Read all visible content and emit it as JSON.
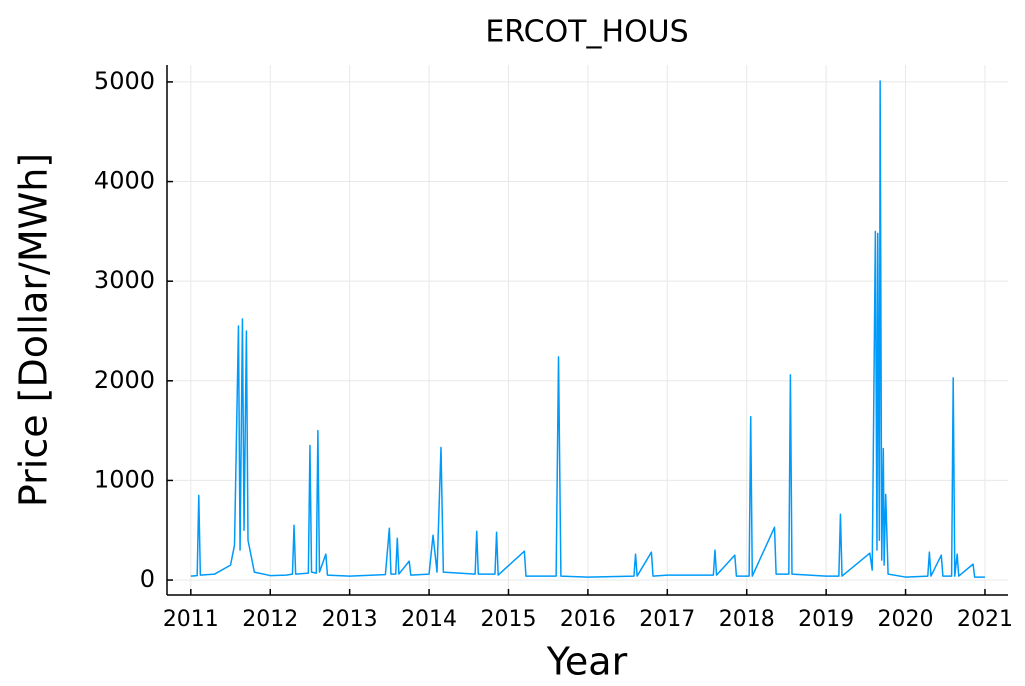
{
  "chart_data": {
    "type": "line",
    "title": "ERCOT_HOUS",
    "xlabel": "Year",
    "ylabel": "Price [Dollar/MWh]",
    "color": "#009af9",
    "grid": true,
    "xlim": [
      2010.7,
      2021.29
    ],
    "ylim": [
      -150,
      5170
    ],
    "xticks": [
      2011,
      2012,
      2013,
      2014,
      2015,
      2016,
      2017,
      2018,
      2019,
      2020,
      2021
    ],
    "yticks": [
      0,
      1000,
      2000,
      3000,
      4000,
      5000
    ],
    "x": [
      2011.0,
      2011.08,
      2011.1,
      2011.12,
      2011.3,
      2011.5,
      2011.55,
      2011.6,
      2011.62,
      2011.65,
      2011.67,
      2011.7,
      2011.72,
      2011.8,
      2012.0,
      2012.2,
      2012.28,
      2012.3,
      2012.32,
      2012.48,
      2012.5,
      2012.52,
      2012.58,
      2012.6,
      2012.62,
      2012.7,
      2012.72,
      2013.0,
      2013.45,
      2013.5,
      2013.52,
      2013.58,
      2013.6,
      2013.62,
      2013.75,
      2013.77,
      2014.0,
      2014.05,
      2014.1,
      2014.15,
      2014.18,
      2014.58,
      2014.6,
      2014.62,
      2014.83,
      2014.85,
      2014.87,
      2015.2,
      2015.22,
      2015.6,
      2015.63,
      2015.66,
      2016.0,
      2016.58,
      2016.6,
      2016.62,
      2016.8,
      2016.82,
      2017.0,
      2017.58,
      2017.6,
      2017.62,
      2017.85,
      2017.87,
      2018.03,
      2018.05,
      2018.07,
      2018.35,
      2018.37,
      2018.53,
      2018.55,
      2018.57,
      2019.0,
      2019.16,
      2019.18,
      2019.2,
      2019.55,
      2019.58,
      2019.62,
      2019.64,
      2019.65,
      2019.67,
      2019.68,
      2019.7,
      2019.72,
      2019.73,
      2019.75,
      2019.78,
      2020.0,
      2020.28,
      2020.3,
      2020.32,
      2020.45,
      2020.47,
      2020.58,
      2020.6,
      2020.62,
      2020.65,
      2020.67,
      2020.85,
      2020.87,
      2021.0
    ],
    "values": [
      40,
      45,
      850,
      50,
      60,
      150,
      350,
      2550,
      300,
      2620,
      500,
      2500,
      400,
      80,
      45,
      50,
      60,
      550,
      60,
      70,
      1350,
      80,
      70,
      1500,
      80,
      260,
      50,
      40,
      55,
      520,
      60,
      60,
      420,
      60,
      190,
      50,
      60,
      450,
      80,
      1330,
      80,
      60,
      490,
      60,
      60,
      480,
      50,
      290,
      40,
      40,
      2240,
      40,
      30,
      40,
      260,
      40,
      280,
      40,
      50,
      50,
      300,
      50,
      250,
      40,
      40,
      1640,
      40,
      530,
      60,
      60,
      2060,
      60,
      40,
      40,
      660,
      40,
      270,
      100,
      3500,
      300,
      3480,
      400,
      5010,
      200,
      1320,
      150,
      860,
      60,
      30,
      40,
      280,
      40,
      250,
      40,
      40,
      2030,
      40,
      260,
      40,
      160,
      30,
      30
    ]
  }
}
